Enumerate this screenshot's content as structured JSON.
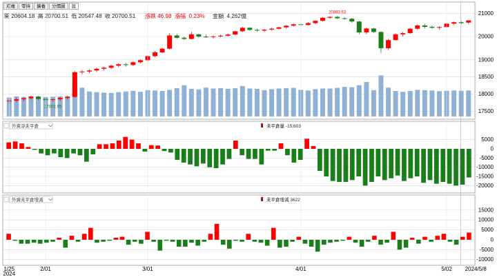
{
  "tabs": [
    {
      "label": "成複"
    },
    {
      "label": "零持"
    },
    {
      "label": "擴養"
    },
    {
      "label": "分價圖"
    },
    {
      "label": "設"
    }
  ],
  "ohlc": {
    "open_label": "開",
    "open": "20604.18",
    "high_label": "高",
    "high": "20700.51",
    "low_label": "低",
    "low": "20547.48",
    "close_label": "收",
    "close": "20700.51",
    "change_label": "漲跌",
    "change": "46.98",
    "pct_label": "漲幅",
    "pct": "0.23%",
    "amount_label": "金額",
    "amount": "4,262億"
  },
  "colors": {
    "up": "#ff0000",
    "down": "#1a7f1a",
    "volume": "#8fb1d6",
    "grid": "#d8d8d8"
  },
  "chart_data": [
    {
      "type": "candlestick",
      "name": "price",
      "annotations": [
        {
          "label": "20883.63",
          "index": 45
        },
        {
          "label": "17802.95",
          "index": 6
        }
      ],
      "yticks": [
        17500,
        18000,
        18500,
        19000,
        20000,
        21000
      ],
      "ylim": [
        17350,
        21250
      ],
      "axis_break": [
        19000,
        20000
      ],
      "x_labels": [
        {
          "label": "1/25\n2024",
          "index": 0
        },
        {
          "label": "2/01",
          "index": 5
        },
        {
          "label": "3/01",
          "index": 19
        },
        {
          "label": "4/01",
          "index": 40
        },
        {
          "label": "5/02",
          "index": 60
        },
        {
          "label": "2024/5/8",
          "index": 64
        }
      ],
      "candles": [
        [
          17790,
          17880,
          17720,
          17810
        ],
        [
          17810,
          17900,
          17760,
          17850
        ],
        [
          17850,
          17920,
          17800,
          17880
        ],
        [
          17880,
          17960,
          17840,
          17930
        ],
        [
          17930,
          17950,
          17820,
          17860
        ],
        [
          17860,
          17900,
          17780,
          17830
        ],
        [
          17830,
          17870,
          17780,
          17850
        ],
        [
          17850,
          17920,
          17810,
          17890
        ],
        [
          17890,
          17950,
          17840,
          17920
        ],
        [
          17920,
          18680,
          17900,
          18640
        ],
        [
          18640,
          18700,
          18580,
          18660
        ],
        [
          18660,
          18720,
          18610,
          18690
        ],
        [
          18690,
          18780,
          18640,
          18740
        ],
        [
          18740,
          18800,
          18690,
          18770
        ],
        [
          18770,
          18860,
          18730,
          18830
        ],
        [
          18830,
          18900,
          18780,
          18870
        ],
        [
          18870,
          18920,
          18800,
          18850
        ],
        [
          18850,
          18960,
          18820,
          18930
        ],
        [
          18930,
          19020,
          18900,
          18990
        ],
        [
          18990,
          19200,
          18960,
          19160
        ],
        [
          19160,
          19380,
          19120,
          19320
        ],
        [
          19320,
          19520,
          19280,
          19480
        ],
        [
          19480,
          20150,
          19450,
          20050
        ],
        [
          20050,
          20120,
          19900,
          19950
        ],
        [
          19950,
          20000,
          19850,
          19900
        ],
        [
          19900,
          20200,
          19880,
          20100
        ],
        [
          20100,
          20120,
          19960,
          20000
        ],
        [
          20000,
          20080,
          19940,
          19980
        ],
        [
          19980,
          20050,
          19920,
          20010
        ],
        [
          20010,
          20080,
          19970,
          20040
        ],
        [
          20040,
          20130,
          20000,
          20090
        ],
        [
          20090,
          20250,
          20060,
          20230
        ],
        [
          20230,
          20420,
          20190,
          20380
        ],
        [
          20380,
          20410,
          20250,
          20290
        ],
        [
          20290,
          20340,
          20210,
          20260
        ],
        [
          20260,
          20330,
          20200,
          20300
        ],
        [
          20300,
          20380,
          20250,
          20340
        ],
        [
          20340,
          20420,
          20300,
          20400
        ],
        [
          20400,
          20500,
          20350,
          20470
        ],
        [
          20470,
          20560,
          20420,
          20530
        ],
        [
          20530,
          20600,
          20460,
          20500
        ],
        [
          20500,
          20620,
          20470,
          20580
        ],
        [
          20580,
          20700,
          20540,
          20680
        ],
        [
          20680,
          20850,
          20650,
          20810
        ],
        [
          20810,
          20883,
          20760,
          20850
        ],
        [
          20850,
          20880,
          20760,
          20790
        ],
        [
          20790,
          20840,
          20730,
          20770
        ],
        [
          20770,
          20800,
          20600,
          20650
        ],
        [
          20650,
          20680,
          20100,
          20180
        ],
        [
          20180,
          20400,
          20100,
          20350
        ],
        [
          20350,
          20380,
          20150,
          20200
        ],
        [
          20200,
          20220,
          19300,
          19500
        ],
        [
          19500,
          19900,
          19420,
          19850
        ],
        [
          19850,
          20150,
          19830,
          20100
        ],
        [
          20100,
          20200,
          20000,
          20150
        ],
        [
          20150,
          20380,
          20120,
          20340
        ],
        [
          20340,
          20520,
          20300,
          20480
        ],
        [
          20480,
          20550,
          20360,
          20420
        ],
        [
          20420,
          20470,
          20340,
          20380
        ],
        [
          20380,
          20450,
          20300,
          20410
        ],
        [
          20410,
          20600,
          20380,
          20560
        ],
        [
          20560,
          20650,
          20500,
          20620
        ],
        [
          20620,
          20680,
          20540,
          20580
        ],
        [
          20604,
          20700,
          20547,
          20700
        ]
      ],
      "volume": [
        1.15,
        1.22,
        1.18,
        1.2,
        1.16,
        1.18,
        1.2,
        1.22,
        1.24,
        1.8,
        1.75,
        1.52,
        1.48,
        1.45,
        1.43,
        1.48,
        1.52,
        1.56,
        1.5,
        1.6,
        1.58,
        1.55,
        1.62,
        1.72,
        1.9,
        1.68,
        1.65,
        1.75,
        1.7,
        1.72,
        1.68,
        1.72,
        1.85,
        1.7,
        1.68,
        1.6,
        1.66,
        1.7,
        1.72,
        1.74,
        1.62,
        1.58,
        1.66,
        1.7,
        1.7,
        1.74,
        1.8,
        1.78,
        1.9,
        2.1,
        1.6,
        2.5,
        1.75,
        1.55,
        1.5,
        1.55,
        1.62,
        1.6,
        1.58,
        1.54,
        1.56,
        1.58,
        1.56,
        1.58
      ]
    },
    {
      "type": "bar",
      "name": "foreign-net-position",
      "selector_label": "外資淨未平倉",
      "legend_label": "未平倉量",
      "legend_value": "-15,603",
      "yticks": [
        5000,
        0,
        -5000,
        -10000,
        -15000,
        -20000
      ],
      "ylim": [
        -22500,
        9000
      ],
      "values": [
        3500,
        4000,
        3000,
        1000,
        -500,
        -2500,
        -3500,
        -2500,
        -4500,
        -5000,
        -2500,
        -3500,
        -7000,
        -3000,
        2500,
        2500,
        3000,
        4500,
        6500,
        5000,
        3000,
        -1500,
        2000,
        1800,
        -1200,
        -2000,
        -6000,
        -7500,
        -8500,
        -9500,
        -8000,
        -10000,
        -10500,
        -8500,
        -5500,
        4500,
        -3500,
        -5500,
        -5500,
        -8500,
        -1000,
        -1000,
        3000,
        -3500,
        -7500,
        -6000,
        5500,
        1500,
        -12000,
        -15000,
        -17500,
        -18000,
        -18000,
        -17000,
        -15000,
        -20000,
        -18000,
        -15000,
        -17000,
        -16000,
        -14500,
        -17500,
        -16000,
        -15000,
        -18500,
        -17000,
        -19000,
        -18000,
        -19000,
        -20000,
        -19500,
        -15603
      ]
    },
    {
      "type": "bar",
      "name": "foreign-position-change",
      "selector_label": "外資未平倉增減",
      "legend_label": "未平倉增減",
      "legend_value": "3622",
      "yticks": [
        15000,
        10000,
        5000,
        0,
        -5000,
        -10000
      ],
      "ylim": [
        -11500,
        17000
      ],
      "values": [
        3000,
        -500,
        -2000,
        -2000,
        -1500,
        -2000,
        -1500,
        -1000,
        1000,
        -4000,
        2000,
        -1000,
        3000,
        6000,
        -1500,
        -1000,
        -500,
        1000,
        1500,
        -2500,
        -1000,
        -2000,
        4000,
        -1000,
        -5500,
        -500,
        -1000,
        -3500,
        -3500,
        -1500,
        -3000,
        -1000,
        3000,
        8000,
        -2500,
        -4500,
        -500,
        -1000,
        3000,
        -1000,
        -1500,
        -3000,
        6000,
        -4000,
        -3500,
        -1000,
        1500,
        -2000,
        -3500,
        -6000,
        -2500,
        -1500,
        -1000,
        -500,
        1500,
        -1500,
        -3500,
        -1000,
        2000,
        -2500,
        -1500,
        4000,
        -5000,
        -4000,
        1000,
        -2000,
        1500,
        -1000,
        2000,
        3000,
        -1000,
        -2500,
        1500,
        3622
      ]
    }
  ]
}
